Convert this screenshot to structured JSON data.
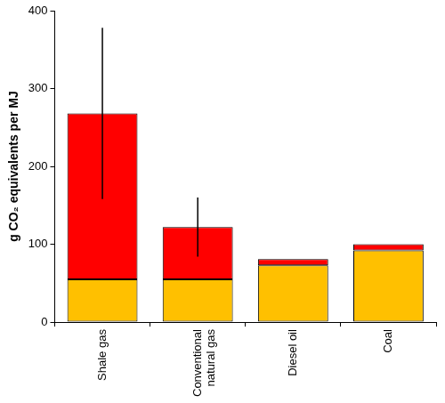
{
  "chart_data": {
    "type": "bar",
    "y_label": "g CO₂ equivalents per MJ",
    "categories": [
      "Shale gas",
      "Conventional natural gas",
      "Diesel oil",
      "Coal"
    ],
    "series": [
      {
        "color": "#FFC000",
        "values": [
          55,
          55,
          73,
          92
        ]
      },
      {
        "color": "#FF0000",
        "values": [
          213,
          67,
          8,
          8
        ],
        "error_bars": [
          [
            158,
            378
          ],
          [
            84,
            160
          ],
          null,
          null
        ]
      }
    ],
    "stacked": true,
    "ylim": [
      0,
      400
    ],
    "yticks": [
      0,
      100,
      200,
      300,
      400
    ],
    "grid": false
  }
}
